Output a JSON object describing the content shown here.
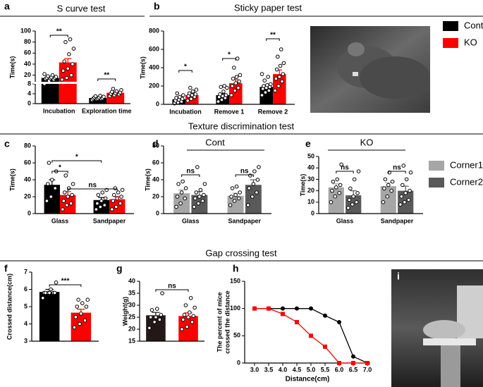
{
  "panel_labels": [
    "a",
    "b",
    "c",
    "d",
    "e",
    "f",
    "g",
    "h",
    "i"
  ],
  "section_titles": [
    "Sticky paper test",
    "Texture discrimination test",
    "Gap crossing test"
  ],
  "chart_data": [
    {
      "type": "bar",
      "title": "S curve test",
      "ylabel": "Time(s)",
      "categories": [
        "Incubation",
        "Exploration time"
      ],
      "ylim": [
        0,
        100
      ],
      "axis_break": 8,
      "yticks": [
        0,
        4,
        8,
        20,
        40,
        60,
        80,
        100
      ],
      "series": [
        {
          "color": "#000000",
          "values": [
            15,
            2.3
          ],
          "errors": [
            2,
            0.2
          ],
          "points": [
            [
              8,
              10,
              12,
              13,
              14,
              15,
              15,
              16,
              17,
              18,
              20,
              22
            ],
            [
              1.5,
              1.8,
              1.9,
              2,
              2,
              2.2,
              2.5,
              2.5,
              2.8,
              3,
              3.2
            ]
          ]
        },
        {
          "color": "#ff0000",
          "values": [
            43,
            4.4
          ],
          "errors": [
            7,
            0.3
          ],
          "points": [
            [
              12,
              15,
              20,
              28,
              32,
              40,
              45,
              58,
              68,
              80,
              85
            ],
            [
              3,
              3.4,
              3.8,
              4,
              4.2,
              4.5,
              4.8,
              5,
              5.5,
              6
            ]
          ]
        }
      ],
      "significance": [
        "**",
        "**"
      ]
    },
    {
      "type": "bar",
      "ylabel": "Time(s)",
      "categories": [
        "Incubation",
        "Remove 1",
        "Remove 2"
      ],
      "ylim": [
        0,
        800
      ],
      "yticks": [
        0,
        200,
        400,
        600,
        800
      ],
      "series": [
        {
          "name": "Cont",
          "color": "#000000",
          "values": [
            55,
            100,
            190
          ],
          "errors": [
            12,
            17,
            20
          ],
          "points": [
            [
              10,
              20,
              30,
              40,
              50,
              60,
              70,
              80,
              100,
              120
            ],
            [
              30,
              50,
              70,
              80,
              90,
              100,
              110,
              140,
              180,
              190,
              200
            ],
            [
              100,
              130,
              150,
              170,
              180,
              190,
              200,
              210,
              220,
              260,
              300,
              330
            ]
          ]
        },
        {
          "name": "KO",
          "color": "#ff0000",
          "values": [
            100,
            230,
            330
          ],
          "errors": [
            15,
            40,
            45
          ],
          "points": [
            [
              40,
              60,
              80,
              90,
              100,
              110,
              120,
              140,
              160,
              180
            ],
            [
              100,
              150,
              180,
              200,
              230,
              250,
              280,
              300,
              320,
              400,
              500
            ],
            [
              150,
              200,
              250,
              280,
              300,
              330,
              380,
              420,
              450,
              520,
              600
            ]
          ]
        }
      ],
      "significance": [
        "*",
        "*",
        "**"
      ]
    },
    {
      "type": "bar",
      "ylabel": "Time(s)",
      "categories": [
        "Glass",
        "Sandpaper"
      ],
      "ylim": [
        0,
        80
      ],
      "yticks": [
        0,
        20,
        40,
        60,
        80
      ],
      "series": [
        {
          "color": "#000000",
          "values": [
            34,
            16
          ],
          "errors": [
            6,
            3
          ],
          "points": [
            [
              15,
              20,
              30,
              35,
              40,
              50,
              60
            ],
            [
              5,
              8,
              10,
              12,
              15,
              18,
              22,
              25,
              28
            ]
          ]
        },
        {
          "color": "#ff0000",
          "values": [
            22,
            17
          ],
          "errors": [
            4,
            3
          ],
          "points": [
            [
              5,
              10,
              12,
              15,
              20,
              22,
              25,
              30,
              35,
              45
            ],
            [
              5,
              8,
              12,
              15,
              18,
              20,
              22,
              25,
              28,
              30
            ]
          ]
        }
      ],
      "significance": [
        "*",
        "*",
        "ns"
      ]
    },
    {
      "type": "bar",
      "title": "Cont",
      "ylabel": "Time(s)",
      "categories": [
        "Glass",
        "Sandpaper"
      ],
      "ylim": [
        0,
        80
      ],
      "yticks": [
        0,
        20,
        40,
        60,
        80
      ],
      "series": [
        {
          "color": "#a6a6a6",
          "values": [
            24,
            21
          ],
          "errors": [
            4,
            3
          ],
          "points": [
            [
              8,
              12,
              18,
              20,
              25,
              30,
              35,
              38
            ],
            [
              10,
              15,
              18,
              20,
              22,
              25,
              30,
              32
            ]
          ]
        },
        {
          "color": "#595959",
          "values": [
            22,
            34
          ],
          "errors": [
            4,
            6
          ],
          "points": [
            [
              8,
              12,
              15,
              18,
              20,
              22,
              25,
              28,
              35,
              55
            ],
            [
              10,
              20,
              25,
              30,
              35,
              40,
              45,
              50,
              55
            ]
          ]
        }
      ],
      "significance": [
        "ns",
        "ns"
      ]
    },
    {
      "type": "bar",
      "title": "KO",
      "ylabel": "Time(s)",
      "categories": [
        "Glass",
        "Sandpaper"
      ],
      "ylim": [
        0,
        50
      ],
      "yticks": [
        0,
        10,
        20,
        30,
        40,
        50
      ],
      "series": [
        {
          "name": "Corner1",
          "color": "#a6a6a6",
          "values": [
            23,
            24
          ],
          "errors": [
            3,
            3
          ],
          "points": [
            [
              10,
              15,
              18,
              20,
              23,
              25,
              28,
              30,
              43
            ],
            [
              10,
              15,
              20,
              22,
              25,
              28,
              30,
              36
            ]
          ]
        },
        {
          "name": "Corner2",
          "color": "#595959",
          "values": [
            16,
            20
          ],
          "errors": [
            4,
            4
          ],
          "points": [
            [
              5,
              8,
              10,
              12,
              15,
              18,
              22,
              30,
              37
            ],
            [
              8,
              10,
              12,
              15,
              18,
              20,
              25,
              30,
              36,
              42
            ]
          ]
        }
      ],
      "significance": [
        "ns",
        "ns"
      ]
    },
    {
      "type": "bar",
      "ylabel": "Crossed distance(cm)",
      "categories": [
        null
      ],
      "ylim": [
        3,
        7
      ],
      "yticks": [
        3,
        4,
        5,
        6,
        7
      ],
      "series": [
        {
          "color": "#000000",
          "values": [
            5.85
          ],
          "errors": [
            0.15
          ],
          "points": [
            [
              5.5,
              5.8,
              5.8,
              5.8,
              5.8,
              5.8,
              5.8,
              6,
              6.4
            ]
          ]
        },
        {
          "color": "#ff0000",
          "values": [
            4.65
          ],
          "errors": [
            0.2
          ],
          "points": [
            [
              3.8,
              4,
              4.2,
              4.4,
              4.6,
              5,
              5,
              5.2,
              5.4,
              5.4
            ]
          ]
        }
      ],
      "significance": [
        "***"
      ]
    },
    {
      "type": "bar",
      "ylabel": "Weight(g)",
      "categories": [
        null
      ],
      "ylim": [
        15,
        40
      ],
      "yticks": [
        15,
        20,
        25,
        30,
        35,
        40
      ],
      "series": [
        {
          "color": "#231815",
          "values": [
            25.8
          ],
          "errors": [
            1.2
          ],
          "points": [
            [
              20.5,
              23,
              24,
              25,
              25,
              26,
              28,
              28.5,
              35
            ]
          ]
        },
        {
          "color": "#ff0000",
          "values": [
            25.5
          ],
          "errors": [
            1.3
          ],
          "points": [
            [
              20,
              21,
              23,
              24,
              25,
              25.5,
              26,
              27,
              29,
              30,
              33
            ]
          ]
        }
      ],
      "significance": [
        "ns"
      ]
    },
    {
      "type": "line",
      "xlabel": "Distance(cm)",
      "ylabel": [
        "The percent of mice",
        "crossed the distance"
      ],
      "x": [
        3,
        3.5,
        4,
        4.5,
        5,
        5.5,
        6,
        6.5,
        7
      ],
      "xlim": [
        2.65,
        7.1
      ],
      "xticks": [
        {
          "value": 3,
          "label": "3.0"
        },
        {
          "value": 3.5,
          "label": "3.5"
        },
        {
          "value": 4,
          "label": "4.0"
        },
        {
          "value": 4.5,
          "label": "4.5"
        },
        {
          "value": 5,
          "label": "5.0"
        },
        {
          "value": 5.5,
          "label": "5.5"
        },
        {
          "value": 6,
          "label": "6.0"
        },
        {
          "value": 6.5,
          "label": "6.5"
        },
        {
          "value": 7,
          "label": "7.0"
        }
      ],
      "ylim": [
        0,
        150
      ],
      "yticks": [
        0,
        50,
        100,
        150
      ],
      "series": [
        {
          "color": "#000000",
          "marker": "circle",
          "values": [
            100,
            100,
            100,
            100,
            100,
            87,
            75,
            12,
            0
          ]
        },
        {
          "color": "#ff0000",
          "marker": "square",
          "values": [
            100,
            100,
            90,
            75,
            50,
            30,
            0,
            0,
            0
          ]
        }
      ]
    }
  ]
}
